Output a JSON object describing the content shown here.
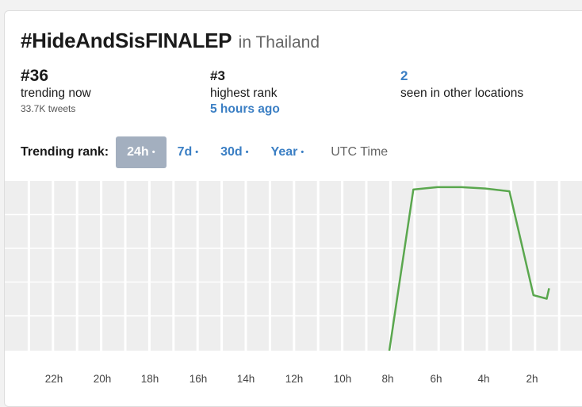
{
  "header": {
    "hashtag": "#HideAndSisFINALEP",
    "location": "in Thailand"
  },
  "stats": {
    "current": {
      "value": "#36",
      "label": "trending now",
      "sub": "33.7K tweets"
    },
    "highest": {
      "value": "#3",
      "label": "highest rank",
      "time": "5 hours ago"
    },
    "other": {
      "value": "2",
      "label": "seen in other locations"
    }
  },
  "ranges": {
    "label": "Trending rank:",
    "options": [
      {
        "label": "24h",
        "dot": "•",
        "active": true
      },
      {
        "label": "7d",
        "dot": "•",
        "active": false
      },
      {
        "label": "30d",
        "dot": "•",
        "active": false
      },
      {
        "label": "Year",
        "dot": "•",
        "active": false
      }
    ],
    "timezone": "UTC Time"
  },
  "colors": {
    "line": "#5aa74e",
    "grid_bg": "#eeeeee",
    "link": "#3b7fc4",
    "active_btn": "#a3afbf"
  },
  "chart_data": {
    "type": "line",
    "x_tick_labels": [
      "22h",
      "20h",
      "18h",
      "16h",
      "14h",
      "12h",
      "10h",
      "8h",
      "6h",
      "4h",
      "2h"
    ],
    "x_hours_ago": [
      7,
      6,
      5,
      4,
      3,
      2,
      1,
      0.45,
      0.35
    ],
    "y_rank": [
      50,
      3.5,
      2.8,
      2.8,
      3.2,
      4,
      34,
      35,
      32
    ],
    "series": [
      {
        "values": [
          50,
          3.5,
          2.8,
          2.8,
          3.2,
          4,
          34,
          35,
          32
        ]
      }
    ],
    "grid": true
  }
}
